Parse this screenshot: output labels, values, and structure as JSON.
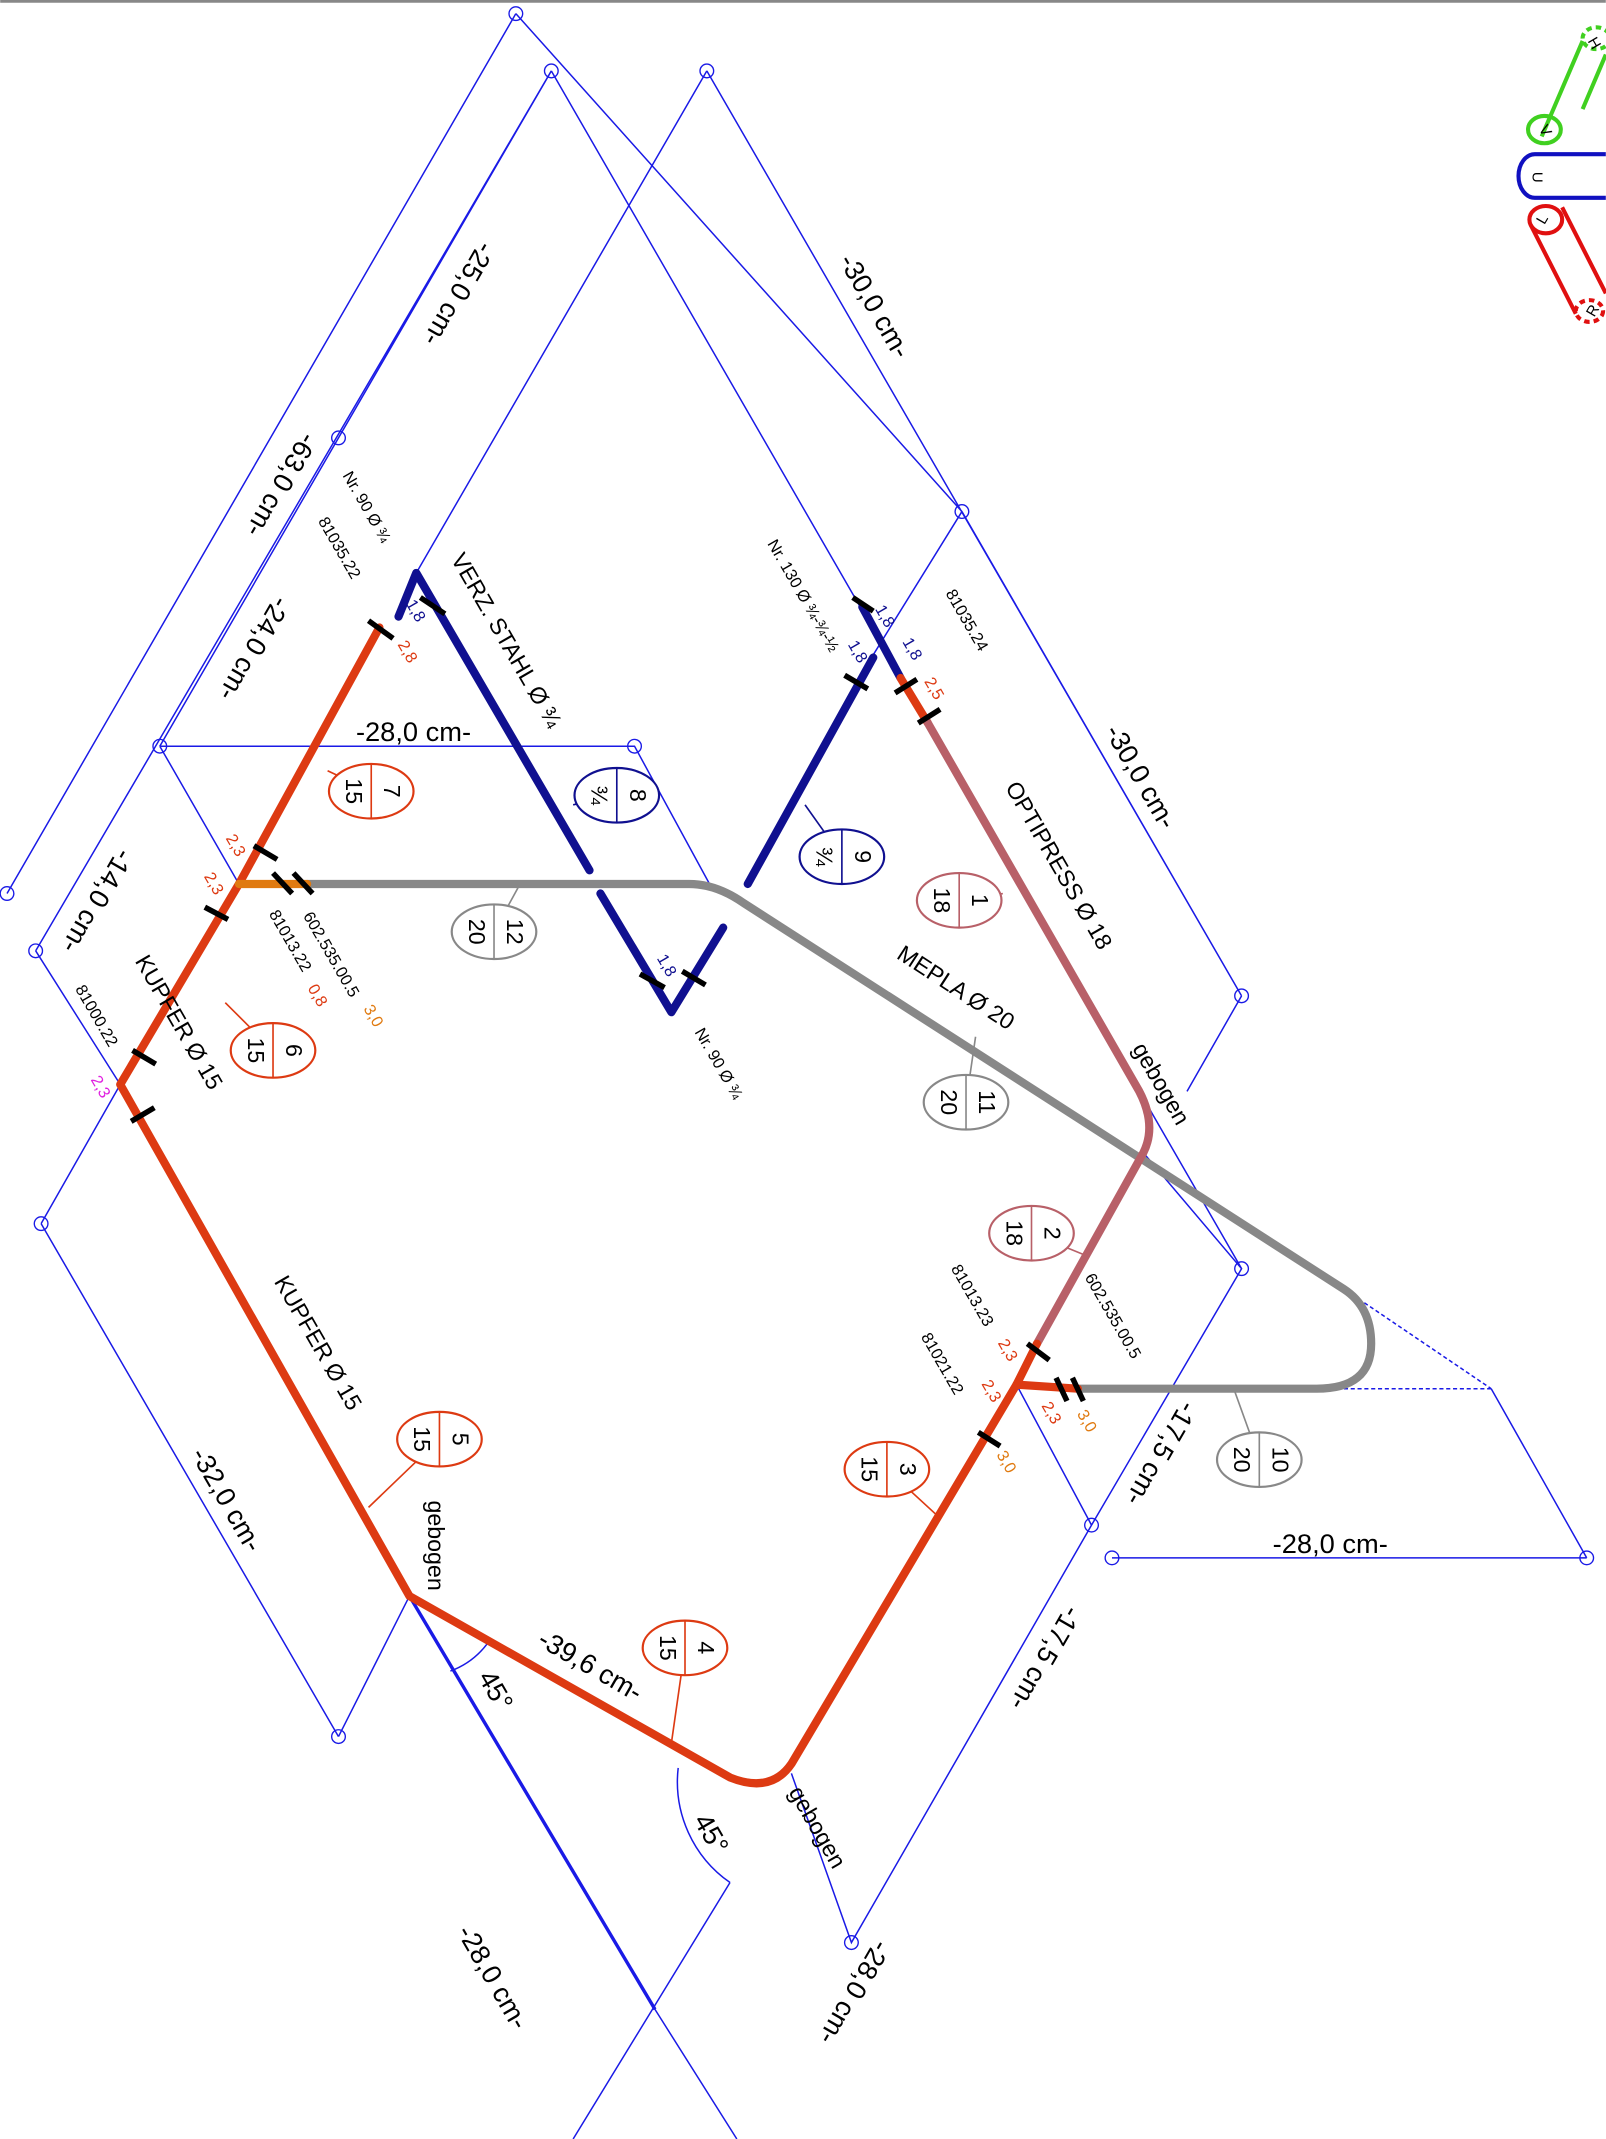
{
  "dimensions": [
    "-63,0 cm-",
    "-25,0 cm-",
    "-30,0 cm-",
    "-24,0 cm-",
    "-28,0 cm-",
    "-14,0 cm-",
    "-30,0 cm-",
    "-17,5 cm-",
    "-28,0 cm-",
    "-17,5 cm-",
    "-32,0 cm-",
    "-39,6 cm-",
    "-28,0 cm-",
    "-28,0 cm-"
  ],
  "angles": [
    "45°",
    "45°"
  ],
  "pipes": [
    "VERZ. STAHL Ø ¾",
    "OPTIPRESS Ø 18",
    "MEPLA Ø 20",
    "KUPFER Ø 15",
    "KUPFER Ø 15"
  ],
  "bends": [
    "gebogen",
    "gebogen",
    "gebogen"
  ],
  "fittings": [
    "Nr. 90 Ø ¾",
    "81035.22",
    "Nr. 130 Ø ¾-¾-½",
    "81035.24",
    "Nr. 90 Ø ¾",
    "602.535.00.5",
    "81013.22",
    "81000.22",
    "81013.23",
    "602.535.00.5",
    "81021.22"
  ],
  "lengths": [
    "1,8",
    "2,8",
    "2,3",
    "2,3",
    "0,8",
    "3,0",
    "2,3",
    "1,8",
    "1,8",
    "1,8",
    "2,5",
    "1,8",
    "2,3",
    "2,3",
    "2,3",
    "3,0",
    "3,0"
  ],
  "sections": [
    {
      "number": "1",
      "diameter": "18"
    },
    {
      "number": "2",
      "diameter": "18"
    },
    {
      "number": "3",
      "diameter": "15"
    },
    {
      "number": "4",
      "diameter": "15"
    },
    {
      "number": "5",
      "diameter": "15"
    },
    {
      "number": "6",
      "diameter": "15"
    },
    {
      "number": "7",
      "diameter": "15"
    },
    {
      "number": "8",
      "diameter": "¾"
    },
    {
      "number": "9",
      "diameter": "¾"
    },
    {
      "number": "10",
      "diameter": "20"
    },
    {
      "number": "11",
      "diameter": "20"
    },
    {
      "number": "12",
      "diameter": "20"
    }
  ],
  "legend": [
    "H",
    "V",
    "U",
    "L",
    "R"
  ]
}
